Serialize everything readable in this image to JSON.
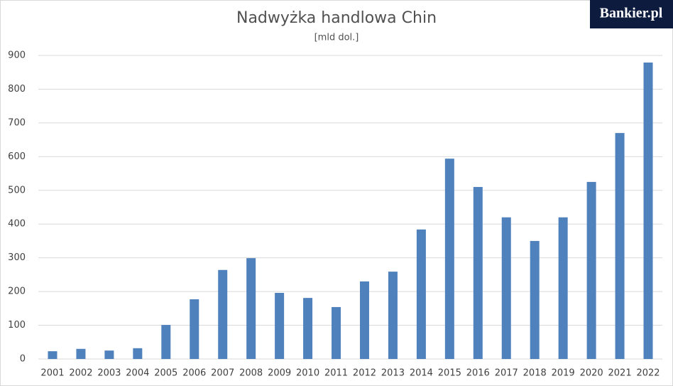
{
  "logo": "Bankier.pl",
  "chart_data": {
    "type": "bar",
    "title": "Nadwyżka handlowa Chin",
    "subtitle": "[mld dol.]",
    "categories": [
      "2001",
      "2002",
      "2003",
      "2004",
      "2005",
      "2006",
      "2007",
      "2008",
      "2009",
      "2010",
      "2011",
      "2012",
      "2013",
      "2014",
      "2015",
      "2016",
      "2017",
      "2018",
      "2019",
      "2020",
      "2021",
      "2022"
    ],
    "values": [
      23,
      30,
      25,
      32,
      101,
      177,
      264,
      299,
      196,
      181,
      154,
      230,
      259,
      384,
      594,
      510,
      420,
      350,
      420,
      525,
      670,
      879
    ],
    "color": "#4f81bd",
    "ylim": [
      0,
      900
    ],
    "yticks": [
      0,
      100,
      200,
      300,
      400,
      500,
      600,
      700,
      800,
      900
    ],
    "grid": true
  }
}
